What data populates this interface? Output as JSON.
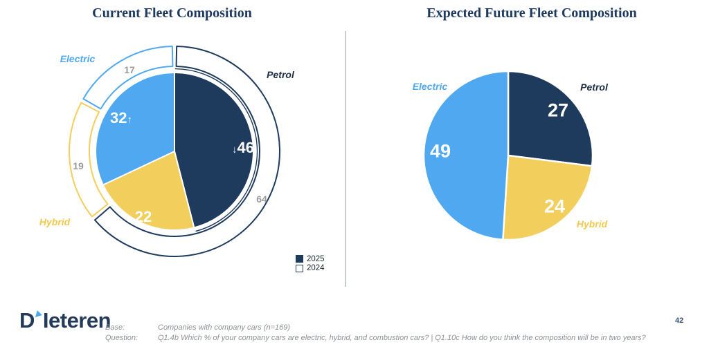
{
  "slide": {
    "page_number": "42"
  },
  "brand": {
    "logo_d": "D",
    "logo_rest": "Ieteren"
  },
  "footer": {
    "base_label": "Base:",
    "base_value": "Companies with company cars (n=169)",
    "question_label": "Question:",
    "question_value": "Q1.4b Which % of your company cars are electric, hybrid, and combustion cars? | Q1.10c How do you think the composition will be in two years?"
  },
  "colors": {
    "petrol_navy": "#1E3A5C",
    "hybrid_yellow": "#F2CE5C",
    "electric_blue": "#4FA8F0",
    "ring_label_gray": "#9B9B9B",
    "title_navy": "#1F3A5F",
    "divider_gray": "#C9CDD1"
  },
  "chart_data": [
    {
      "type": "pie",
      "title": "Current Fleet Composition",
      "categories": [
        "Petrol",
        "Hybrid",
        "Electric"
      ],
      "slice_colors": [
        "#1E3A5C",
        "#F2CE5C",
        "#4FA8F0"
      ],
      "series": [
        {
          "name": "2025",
          "role": "inner-pie",
          "values": [
            46,
            22,
            32
          ]
        },
        {
          "name": "2024",
          "role": "outer-ring",
          "values": [
            64,
            19,
            17
          ]
        }
      ],
      "trend_arrows": {
        "petrol": "↓",
        "electric": "↑"
      },
      "legend_position": "bottom-right",
      "start_angle_deg": 0,
      "direction": "clockwise"
    },
    {
      "type": "pie",
      "title": "Expected Future Fleet Composition",
      "categories": [
        "Petrol",
        "Hybrid",
        "Electric"
      ],
      "slice_colors": [
        "#1E3A5C",
        "#F2CE5C",
        "#4FA8F0"
      ],
      "values": [
        27,
        24,
        49
      ],
      "start_angle_deg": 0,
      "direction": "clockwise"
    }
  ]
}
